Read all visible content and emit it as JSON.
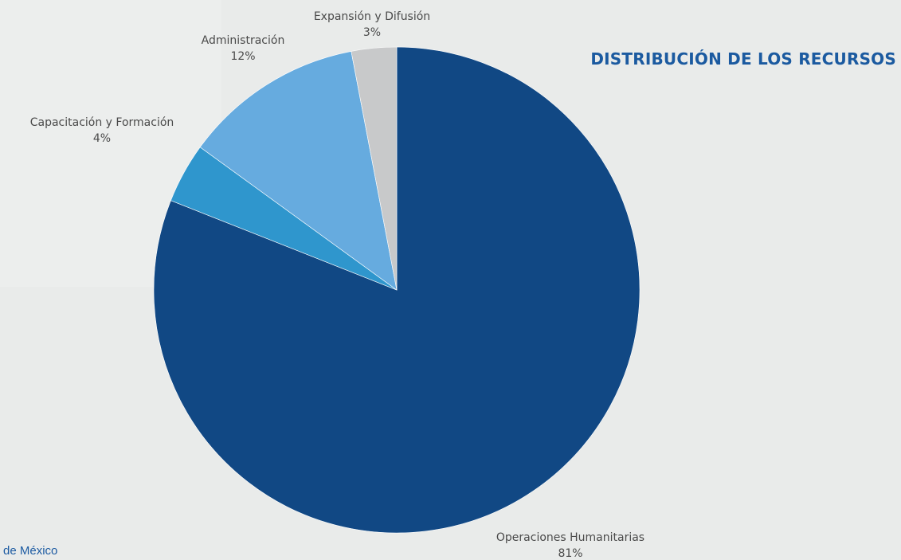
{
  "title": "DISTRIBUCIÓN DE LOS RECURSOS",
  "footer": "de México",
  "chart_data": {
    "type": "pie",
    "title": "DISTRIBUCIÓN DE LOS RECURSOS",
    "start": "12 o'clock",
    "direction": "clockwise",
    "slices": [
      {
        "label": "Operaciones Humanitarias",
        "value": 81,
        "value_label": "81%",
        "color": "#114884"
      },
      {
        "label": "Capacitación y Formación",
        "value": 4,
        "value_label": "4%",
        "color": "#2f96cd"
      },
      {
        "label": "Administración",
        "value": 12,
        "value_label": "12%",
        "color": "#66abdf"
      },
      {
        "label": "Expansión y Difusión",
        "value": 3,
        "value_label": "3%",
        "color": "#c8c9ca"
      }
    ]
  }
}
